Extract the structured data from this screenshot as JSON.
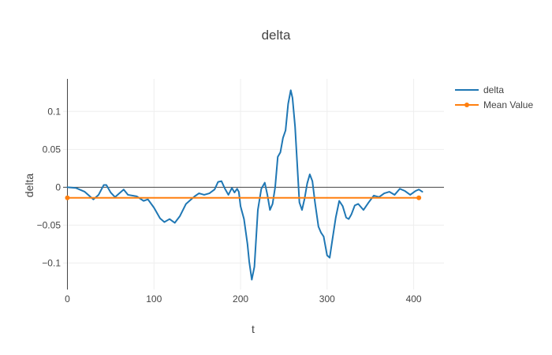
{
  "chart_data": {
    "type": "line",
    "title": "delta",
    "xlabel": "t",
    "ylabel": "delta",
    "xlim": [
      -5,
      435
    ],
    "ylim": [
      -0.135,
      0.143
    ],
    "x_ticks": [
      0,
      100,
      200,
      300,
      400
    ],
    "y_ticks": [
      -0.1,
      -0.05,
      0,
      0.05,
      0.1
    ],
    "x_tick_labels": [
      "0",
      "100",
      "200",
      "300",
      "400"
    ],
    "y_tick_labels": [
      "−0.1",
      "−0.05",
      "0",
      "0.05",
      "0.1"
    ],
    "grid": true,
    "legend_position": "top-right",
    "series": [
      {
        "name": "delta",
        "color": "#1f77b4",
        "mode": "lines",
        "points": [
          [
            0,
            0
          ],
          [
            10,
            -0.001
          ],
          [
            20,
            -0.006
          ],
          [
            30,
            -0.016
          ],
          [
            36,
            -0.01
          ],
          [
            42,
            0.003
          ],
          [
            45,
            0.003
          ],
          [
            50,
            -0.007
          ],
          [
            55,
            -0.013
          ],
          [
            60,
            -0.008
          ],
          [
            65,
            -0.003
          ],
          [
            70,
            -0.01
          ],
          [
            80,
            -0.012
          ],
          [
            88,
            -0.018
          ],
          [
            93,
            -0.016
          ],
          [
            100,
            -0.027
          ],
          [
            107,
            -0.041
          ],
          [
            112,
            -0.046
          ],
          [
            118,
            -0.042
          ],
          [
            124,
            -0.047
          ],
          [
            130,
            -0.038
          ],
          [
            137,
            -0.022
          ],
          [
            142,
            -0.017
          ],
          [
            147,
            -0.012
          ],
          [
            152,
            -0.008
          ],
          [
            158,
            -0.01
          ],
          [
            164,
            -0.008
          ],
          [
            170,
            -0.003
          ],
          [
            174,
            0.007
          ],
          [
            178,
            0.008
          ],
          [
            182,
            -0.002
          ],
          [
            186,
            -0.01
          ],
          [
            190,
            -0.001
          ],
          [
            193,
            -0.007
          ],
          [
            196,
            -0.002
          ],
          [
            198,
            -0.006
          ],
          [
            200,
            -0.025
          ],
          [
            204,
            -0.042
          ],
          [
            208,
            -0.075
          ],
          [
            210,
            -0.098
          ],
          [
            213,
            -0.122
          ],
          [
            216,
            -0.105
          ],
          [
            220,
            -0.03
          ],
          [
            224,
            -0.002
          ],
          [
            228,
            0.006
          ],
          [
            231,
            -0.01
          ],
          [
            234,
            -0.03
          ],
          [
            237,
            -0.022
          ],
          [
            240,
            0.0
          ],
          [
            243,
            0.04
          ],
          [
            246,
            0.046
          ],
          [
            249,
            0.065
          ],
          [
            252,
            0.075
          ],
          [
            255,
            0.11
          ],
          [
            258,
            0.128
          ],
          [
            260,
            0.118
          ],
          [
            263,
            0.08
          ],
          [
            266,
            0.02
          ],
          [
            268,
            -0.02
          ],
          [
            271,
            -0.03
          ],
          [
            274,
            -0.015
          ],
          [
            277,
            0.005
          ],
          [
            280,
            0.017
          ],
          [
            283,
            0.008
          ],
          [
            286,
            -0.02
          ],
          [
            290,
            -0.052
          ],
          [
            293,
            -0.06
          ],
          [
            296,
            -0.065
          ],
          [
            300,
            -0.09
          ],
          [
            303,
            -0.093
          ],
          [
            306,
            -0.07
          ],
          [
            310,
            -0.04
          ],
          [
            314,
            -0.018
          ],
          [
            318,
            -0.025
          ],
          [
            322,
            -0.04
          ],
          [
            325,
            -0.042
          ],
          [
            328,
            -0.036
          ],
          [
            332,
            -0.024
          ],
          [
            336,
            -0.022
          ],
          [
            342,
            -0.03
          ],
          [
            348,
            -0.02
          ],
          [
            354,
            -0.011
          ],
          [
            360,
            -0.013
          ],
          [
            366,
            -0.008
          ],
          [
            372,
            -0.006
          ],
          [
            378,
            -0.01
          ],
          [
            384,
            -0.002
          ],
          [
            390,
            -0.005
          ],
          [
            396,
            -0.01
          ],
          [
            402,
            -0.005
          ],
          [
            406,
            -0.003
          ],
          [
            410,
            -0.006
          ]
        ]
      },
      {
        "name": "Mean Value",
        "color": "#ff7f0e",
        "mode": "lines+markers",
        "points": [
          [
            0,
            -0.014
          ],
          [
            406,
            -0.014
          ]
        ]
      }
    ]
  }
}
